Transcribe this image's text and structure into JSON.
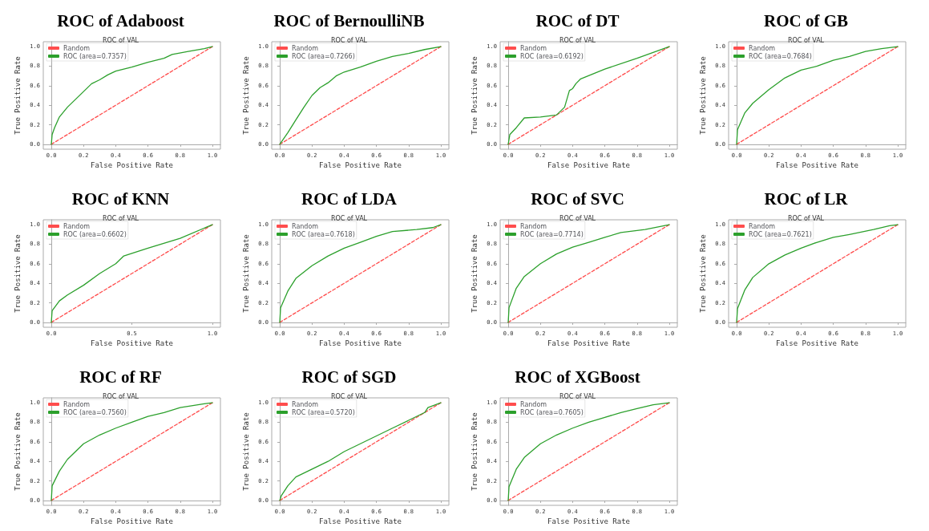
{
  "chart_data": [
    {
      "type": "line",
      "title": "ROC of Adaboost",
      "subtitle": "ROC of VAL",
      "xlabel": "False Positive Rate",
      "ylabel": "True Positive Rate",
      "xlim": [
        -0.05,
        1.05
      ],
      "ylim": [
        -0.05,
        1.05
      ],
      "xticks": [
        {
          "value": 0,
          "label": "0.0"
        },
        {
          "value": 0.2,
          "label": "0.2"
        },
        {
          "value": 0.4,
          "label": "0.4"
        },
        {
          "value": 0.6,
          "label": "0.6"
        },
        {
          "value": 0.8,
          "label": "0.8"
        },
        {
          "value": 1,
          "label": "1.0"
        }
      ],
      "yticks": [
        {
          "value": 0,
          "label": "0.0"
        },
        {
          "value": 0.2,
          "label": "0.2"
        },
        {
          "value": 0.4,
          "label": "0.4"
        },
        {
          "value": 0.6,
          "label": "0.6"
        },
        {
          "value": 0.8,
          "label": "0.8"
        },
        {
          "value": 1,
          "label": "1.0"
        }
      ],
      "legend": "top left",
      "series": [
        {
          "name": "Random",
          "color": "#ff4d4d",
          "line_style": "dashed",
          "x": [
            0,
            1
          ],
          "values": [
            0,
            1
          ]
        },
        {
          "name": "ROC (area=0.7357)",
          "color": "#2ca02c",
          "line_style": "solid",
          "x": [
            0,
            0.005,
            0.02,
            0.05,
            0.1,
            0.15,
            0.2,
            0.25,
            0.3,
            0.35,
            0.4,
            0.5,
            0.6,
            0.7,
            0.75,
            0.85,
            0.95,
            1
          ],
          "values": [
            0,
            0.1,
            0.17,
            0.28,
            0.38,
            0.46,
            0.54,
            0.62,
            0.66,
            0.71,
            0.75,
            0.79,
            0.84,
            0.88,
            0.92,
            0.95,
            0.98,
            1
          ]
        }
      ]
    },
    {
      "type": "line",
      "title": "ROC of BernoulliNB",
      "subtitle": "ROC of VAL",
      "xlabel": "False Positive Rate",
      "ylabel": "True Positive Rate",
      "xlim": [
        -0.05,
        1.05
      ],
      "ylim": [
        -0.05,
        1.05
      ],
      "xticks": [
        {
          "value": 0,
          "label": "0.0"
        },
        {
          "value": 0.2,
          "label": "0.2"
        },
        {
          "value": 0.4,
          "label": "0.4"
        },
        {
          "value": 0.6,
          "label": "0.6"
        },
        {
          "value": 0.8,
          "label": "0.8"
        },
        {
          "value": 1,
          "label": "1.0"
        }
      ],
      "yticks": [
        {
          "value": 0,
          "label": "0.0"
        },
        {
          "value": 0.2,
          "label": "0.2"
        },
        {
          "value": 0.4,
          "label": "0.4"
        },
        {
          "value": 0.6,
          "label": "0.6"
        },
        {
          "value": 0.8,
          "label": "0.8"
        },
        {
          "value": 1,
          "label": "1.0"
        }
      ],
      "legend": "top left",
      "series": [
        {
          "name": "Random",
          "color": "#ff4d4d",
          "line_style": "dashed",
          "x": [
            0,
            1
          ],
          "values": [
            0,
            1
          ]
        },
        {
          "name": "ROC (area=0.7266)",
          "color": "#2ca02c",
          "line_style": "solid",
          "x": [
            0,
            0.05,
            0.1,
            0.15,
            0.2,
            0.25,
            0.3,
            0.35,
            0.4,
            0.5,
            0.6,
            0.7,
            0.8,
            0.9,
            1
          ],
          "values": [
            0,
            0.12,
            0.25,
            0.38,
            0.5,
            0.58,
            0.63,
            0.7,
            0.74,
            0.79,
            0.85,
            0.9,
            0.93,
            0.97,
            1
          ]
        }
      ]
    },
    {
      "type": "line",
      "title": "ROC of DT",
      "subtitle": "ROC of VAL",
      "xlabel": "False Positive Rate",
      "ylabel": "True Positive Rate",
      "xlim": [
        -0.05,
        1.05
      ],
      "ylim": [
        -0.05,
        1.05
      ],
      "xticks": [
        {
          "value": 0,
          "label": "0.0"
        },
        {
          "value": 0.2,
          "label": "0.2"
        },
        {
          "value": 0.4,
          "label": "0.4"
        },
        {
          "value": 0.6,
          "label": "0.6"
        },
        {
          "value": 0.8,
          "label": "0.8"
        },
        {
          "value": 1,
          "label": "1.0"
        }
      ],
      "yticks": [
        {
          "value": 0,
          "label": "0.0"
        },
        {
          "value": 0.2,
          "label": "0.2"
        },
        {
          "value": 0.4,
          "label": "0.4"
        },
        {
          "value": 0.6,
          "label": "0.6"
        },
        {
          "value": 0.8,
          "label": "0.8"
        },
        {
          "value": 1,
          "label": "1.0"
        }
      ],
      "legend": "top left",
      "series": [
        {
          "name": "Random",
          "color": "#ff4d4d",
          "line_style": "dashed",
          "x": [
            0,
            1
          ],
          "values": [
            0,
            1
          ]
        },
        {
          "name": "ROC (area=0.6192)",
          "color": "#2ca02c",
          "line_style": "solid",
          "x": [
            0,
            0.01,
            0.05,
            0.1,
            0.2,
            0.3,
            0.35,
            0.38,
            0.4,
            0.42,
            0.45,
            0.6,
            0.8,
            1
          ],
          "values": [
            0,
            0.1,
            0.17,
            0.27,
            0.28,
            0.3,
            0.38,
            0.55,
            0.57,
            0.62,
            0.67,
            0.77,
            0.88,
            1
          ]
        }
      ]
    },
    {
      "type": "line",
      "title": "ROC of GB",
      "subtitle": "ROC of VAL",
      "xlabel": "False Positive Rate",
      "ylabel": "True Positive Rate",
      "xlim": [
        -0.05,
        1.05
      ],
      "ylim": [
        -0.05,
        1.05
      ],
      "xticks": [
        {
          "value": 0,
          "label": "0.0"
        },
        {
          "value": 0.2,
          "label": "0.2"
        },
        {
          "value": 0.4,
          "label": "0.4"
        },
        {
          "value": 0.6,
          "label": "0.6"
        },
        {
          "value": 0.8,
          "label": "0.8"
        },
        {
          "value": 1,
          "label": "1.0"
        }
      ],
      "yticks": [
        {
          "value": 0,
          "label": "0.0"
        },
        {
          "value": 0.2,
          "label": "0.2"
        },
        {
          "value": 0.4,
          "label": "0.4"
        },
        {
          "value": 0.6,
          "label": "0.6"
        },
        {
          "value": 0.8,
          "label": "0.8"
        },
        {
          "value": 1,
          "label": "1.0"
        }
      ],
      "legend": "top left",
      "series": [
        {
          "name": "Random",
          "color": "#ff4d4d",
          "line_style": "dashed",
          "x": [
            0,
            1
          ],
          "values": [
            0,
            1
          ]
        },
        {
          "name": "ROC (area=0.7684)",
          "color": "#2ca02c",
          "line_style": "solid",
          "x": [
            0,
            0.005,
            0.05,
            0.1,
            0.2,
            0.3,
            0.4,
            0.5,
            0.6,
            0.7,
            0.8,
            0.9,
            1
          ],
          "values": [
            0,
            0.15,
            0.32,
            0.42,
            0.56,
            0.68,
            0.76,
            0.8,
            0.86,
            0.9,
            0.95,
            0.98,
            1
          ]
        }
      ]
    },
    {
      "type": "line",
      "title": "ROC of KNN",
      "subtitle": "ROC of VAL",
      "xlabel": "False Positive Rate",
      "ylabel": "True Positive Rate",
      "xlim": [
        -0.05,
        1.05
      ],
      "ylim": [
        -0.05,
        1.05
      ],
      "xticks": [
        {
          "value": 0,
          "label": "0.0"
        },
        {
          "value": 0.5,
          "label": "0.5"
        },
        {
          "value": 1,
          "label": "1.0"
        }
      ],
      "yticks": [
        {
          "value": 0,
          "label": "0.0"
        },
        {
          "value": 0.2,
          "label": "0.2"
        },
        {
          "value": 0.4,
          "label": "0.4"
        },
        {
          "value": 0.6,
          "label": "0.6"
        },
        {
          "value": 0.8,
          "label": "0.8"
        },
        {
          "value": 1,
          "label": "1.0"
        }
      ],
      "legend": "top left",
      "series": [
        {
          "name": "Random",
          "color": "#ff4d4d",
          "line_style": "dashed",
          "x": [
            0,
            1
          ],
          "values": [
            0,
            1
          ]
        },
        {
          "name": "ROC (area=0.6602)",
          "color": "#2ca02c",
          "line_style": "solid",
          "x": [
            0,
            0.005,
            0.05,
            0.1,
            0.2,
            0.3,
            0.4,
            0.45,
            0.6,
            0.8,
            1
          ],
          "values": [
            0,
            0.12,
            0.22,
            0.28,
            0.38,
            0.5,
            0.6,
            0.68,
            0.76,
            0.86,
            1
          ]
        }
      ]
    },
    {
      "type": "line",
      "title": "ROC of LDA",
      "subtitle": "ROC of VAL",
      "xlabel": "False Positive Rate",
      "ylabel": "True Positive Rate",
      "xlim": [
        -0.05,
        1.05
      ],
      "ylim": [
        -0.05,
        1.05
      ],
      "xticks": [
        {
          "value": 0,
          "label": "0.0"
        },
        {
          "value": 0.2,
          "label": "0.2"
        },
        {
          "value": 0.4,
          "label": "0.4"
        },
        {
          "value": 0.6,
          "label": "0.6"
        },
        {
          "value": 0.8,
          "label": "0.8"
        },
        {
          "value": 1,
          "label": "1.0"
        }
      ],
      "yticks": [
        {
          "value": 0,
          "label": "0.0"
        },
        {
          "value": 0.2,
          "label": "0.2"
        },
        {
          "value": 0.4,
          "label": "0.4"
        },
        {
          "value": 0.6,
          "label": "0.6"
        },
        {
          "value": 0.8,
          "label": "0.8"
        },
        {
          "value": 1,
          "label": "1.0"
        }
      ],
      "legend": "top left",
      "series": [
        {
          "name": "Random",
          "color": "#ff4d4d",
          "line_style": "dashed",
          "x": [
            0,
            1
          ],
          "values": [
            0,
            1
          ]
        },
        {
          "name": "ROC (area=0.7618)",
          "color": "#2ca02c",
          "line_style": "solid",
          "x": [
            0,
            0.005,
            0.05,
            0.1,
            0.2,
            0.3,
            0.4,
            0.5,
            0.6,
            0.7,
            0.85,
            0.95,
            1
          ],
          "values": [
            0,
            0.15,
            0.32,
            0.45,
            0.58,
            0.68,
            0.76,
            0.82,
            0.88,
            0.93,
            0.95,
            0.97,
            1
          ]
        }
      ]
    },
    {
      "type": "line",
      "title": "ROC of SVC",
      "subtitle": "ROC of VAL",
      "xlabel": "False Positive Rate",
      "ylabel": "True Positive Rate",
      "xlim": [
        -0.05,
        1.05
      ],
      "ylim": [
        -0.05,
        1.05
      ],
      "xticks": [
        {
          "value": 0,
          "label": "0.0"
        },
        {
          "value": 0.2,
          "label": "0.2"
        },
        {
          "value": 0.4,
          "label": "0.4"
        },
        {
          "value": 0.6,
          "label": "0.6"
        },
        {
          "value": 0.8,
          "label": "0.8"
        },
        {
          "value": 1,
          "label": "1.0"
        }
      ],
      "yticks": [
        {
          "value": 0,
          "label": "0.0"
        },
        {
          "value": 0.2,
          "label": "0.2"
        },
        {
          "value": 0.4,
          "label": "0.4"
        },
        {
          "value": 0.6,
          "label": "0.6"
        },
        {
          "value": 0.8,
          "label": "0.8"
        },
        {
          "value": 1,
          "label": "1.0"
        }
      ],
      "legend": "top left",
      "series": [
        {
          "name": "Random",
          "color": "#ff4d4d",
          "line_style": "dashed",
          "x": [
            0,
            1
          ],
          "values": [
            0,
            1
          ]
        },
        {
          "name": "ROC (area=0.7714)",
          "color": "#2ca02c",
          "line_style": "solid",
          "x": [
            0,
            0.005,
            0.05,
            0.1,
            0.2,
            0.3,
            0.4,
            0.5,
            0.6,
            0.7,
            0.85,
            1
          ],
          "values": [
            0,
            0.15,
            0.35,
            0.47,
            0.6,
            0.7,
            0.77,
            0.82,
            0.87,
            0.92,
            0.95,
            1
          ]
        }
      ]
    },
    {
      "type": "line",
      "title": "ROC of LR",
      "subtitle": "ROC of VAL",
      "xlabel": "False Positive Rate",
      "ylabel": "True Positive Rate",
      "xlim": [
        -0.05,
        1.05
      ],
      "ylim": [
        -0.05,
        1.05
      ],
      "xticks": [
        {
          "value": 0,
          "label": "0.0"
        },
        {
          "value": 0.2,
          "label": "0.2"
        },
        {
          "value": 0.4,
          "label": "0.4"
        },
        {
          "value": 0.6,
          "label": "0.6"
        },
        {
          "value": 0.8,
          "label": "0.8"
        },
        {
          "value": 1,
          "label": "1.0"
        }
      ],
      "yticks": [
        {
          "value": 0,
          "label": "0.0"
        },
        {
          "value": 0.2,
          "label": "0.2"
        },
        {
          "value": 0.4,
          "label": "0.4"
        },
        {
          "value": 0.6,
          "label": "0.6"
        },
        {
          "value": 0.8,
          "label": "0.8"
        },
        {
          "value": 1,
          "label": "1.0"
        }
      ],
      "legend": "top left",
      "series": [
        {
          "name": "Random",
          "color": "#ff4d4d",
          "line_style": "dashed",
          "x": [
            0,
            1
          ],
          "values": [
            0,
            1
          ]
        },
        {
          "name": "ROC (area=0.7621)",
          "color": "#2ca02c",
          "line_style": "solid",
          "x": [
            0,
            0.005,
            0.05,
            0.1,
            0.2,
            0.3,
            0.4,
            0.5,
            0.6,
            0.7,
            0.85,
            0.95,
            1
          ],
          "values": [
            0,
            0.14,
            0.33,
            0.46,
            0.6,
            0.69,
            0.76,
            0.82,
            0.87,
            0.9,
            0.95,
            0.99,
            1
          ]
        }
      ]
    },
    {
      "type": "line",
      "title": "ROC of RF",
      "subtitle": "ROC of VAL",
      "xlabel": "False Positive Rate",
      "ylabel": "True Positive Rate",
      "xlim": [
        -0.05,
        1.05
      ],
      "ylim": [
        -0.05,
        1.05
      ],
      "xticks": [
        {
          "value": 0,
          "label": "0.0"
        },
        {
          "value": 0.2,
          "label": "0.2"
        },
        {
          "value": 0.4,
          "label": "0.4"
        },
        {
          "value": 0.6,
          "label": "0.6"
        },
        {
          "value": 0.8,
          "label": "0.8"
        },
        {
          "value": 1,
          "label": "1.0"
        }
      ],
      "yticks": [
        {
          "value": 0,
          "label": "0.0"
        },
        {
          "value": 0.2,
          "label": "0.2"
        },
        {
          "value": 0.4,
          "label": "0.4"
        },
        {
          "value": 0.6,
          "label": "0.6"
        },
        {
          "value": 0.8,
          "label": "0.8"
        },
        {
          "value": 1,
          "label": "1.0"
        }
      ],
      "legend": "top left",
      "series": [
        {
          "name": "Random",
          "color": "#ff4d4d",
          "line_style": "dashed",
          "x": [
            0,
            1
          ],
          "values": [
            0,
            1
          ]
        },
        {
          "name": "ROC (area=0.7560)",
          "color": "#2ca02c",
          "line_style": "solid",
          "x": [
            0,
            0.005,
            0.05,
            0.1,
            0.2,
            0.3,
            0.4,
            0.5,
            0.6,
            0.7,
            0.8,
            0.95,
            1
          ],
          "values": [
            0,
            0.15,
            0.3,
            0.42,
            0.58,
            0.67,
            0.74,
            0.8,
            0.86,
            0.9,
            0.95,
            0.99,
            1
          ]
        }
      ]
    },
    {
      "type": "line",
      "title": "ROC of SGD",
      "subtitle": "ROC of VAL",
      "xlabel": "False Positive Rate",
      "ylabel": "True Positive Rate",
      "xlim": [
        -0.05,
        1.05
      ],
      "ylim": [
        -0.05,
        1.05
      ],
      "xticks": [
        {
          "value": 0,
          "label": "0.0"
        },
        {
          "value": 0.2,
          "label": "0.2"
        },
        {
          "value": 0.4,
          "label": "0.4"
        },
        {
          "value": 0.6,
          "label": "0.6"
        },
        {
          "value": 0.8,
          "label": "0.8"
        },
        {
          "value": 1,
          "label": "1.0"
        }
      ],
      "yticks": [
        {
          "value": 0,
          "label": "0.0"
        },
        {
          "value": 0.2,
          "label": "0.2"
        },
        {
          "value": 0.4,
          "label": "0.4"
        },
        {
          "value": 0.6,
          "label": "0.6"
        },
        {
          "value": 0.8,
          "label": "0.8"
        },
        {
          "value": 1,
          "label": "1.0"
        }
      ],
      "legend": "top left",
      "series": [
        {
          "name": "Random",
          "color": "#ff4d4d",
          "line_style": "dashed",
          "x": [
            0,
            1
          ],
          "values": [
            0,
            1
          ]
        },
        {
          "name": "ROC (area=0.5720)",
          "color": "#2ca02c",
          "line_style": "solid",
          "x": [
            0,
            0.01,
            0.05,
            0.1,
            0.2,
            0.3,
            0.4,
            0.5,
            0.6,
            0.7,
            0.8,
            0.9,
            0.92,
            1
          ],
          "values": [
            0,
            0.05,
            0.15,
            0.24,
            0.32,
            0.4,
            0.5,
            0.58,
            0.66,
            0.74,
            0.82,
            0.9,
            0.95,
            1
          ]
        }
      ]
    },
    {
      "type": "line",
      "title": "ROC of XGBoost",
      "subtitle": "ROC of VAL",
      "xlabel": "False Positive Rate",
      "ylabel": "True Positive Rate",
      "xlim": [
        -0.05,
        1.05
      ],
      "ylim": [
        -0.05,
        1.05
      ],
      "xticks": [
        {
          "value": 0,
          "label": "0.0"
        },
        {
          "value": 0.2,
          "label": "0.2"
        },
        {
          "value": 0.4,
          "label": "0.4"
        },
        {
          "value": 0.6,
          "label": "0.6"
        },
        {
          "value": 0.8,
          "label": "0.8"
        },
        {
          "value": 1,
          "label": "1.0"
        }
      ],
      "yticks": [
        {
          "value": 0,
          "label": "0.0"
        },
        {
          "value": 0.2,
          "label": "0.2"
        },
        {
          "value": 0.4,
          "label": "0.4"
        },
        {
          "value": 0.6,
          "label": "0.6"
        },
        {
          "value": 0.8,
          "label": "0.8"
        },
        {
          "value": 1,
          "label": "1.0"
        }
      ],
      "legend": "top left",
      "series": [
        {
          "name": "Random",
          "color": "#ff4d4d",
          "line_style": "dashed",
          "x": [
            0,
            1
          ],
          "values": [
            0,
            1
          ]
        },
        {
          "name": "ROC (area=0.7605)",
          "color": "#2ca02c",
          "line_style": "solid",
          "x": [
            0,
            0.005,
            0.05,
            0.1,
            0.2,
            0.3,
            0.4,
            0.5,
            0.6,
            0.7,
            0.8,
            0.9,
            1
          ],
          "values": [
            0,
            0.14,
            0.32,
            0.44,
            0.58,
            0.67,
            0.74,
            0.8,
            0.85,
            0.9,
            0.94,
            0.98,
            1
          ]
        }
      ]
    }
  ]
}
